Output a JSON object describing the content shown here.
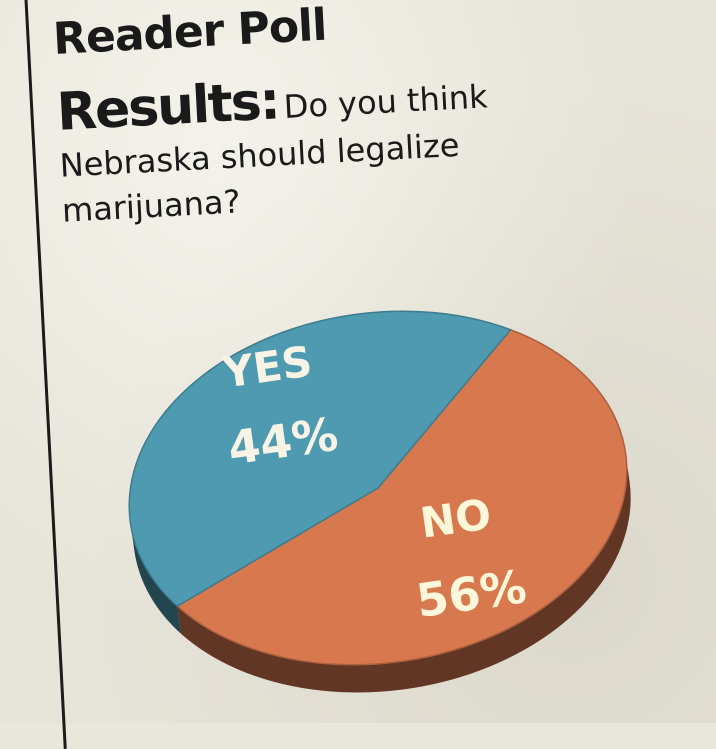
{
  "header": {
    "kicker": "Reader Poll",
    "results_word": "Results:",
    "question_part1": "Do you think",
    "question_part2": "Nebraska should legalize",
    "question_part3": "marijuana?"
  },
  "chart_data": {
    "type": "pie",
    "title": "",
    "slices": [
      {
        "label": "YES",
        "value": 44,
        "value_text": "44%",
        "color": "#4e9ab0"
      },
      {
        "label": "NO",
        "value": 56,
        "value_text": "56%",
        "color": "#d8784f"
      }
    ]
  },
  "colors": {
    "paper": "#e6e3d8",
    "ink": "#1a1a1a",
    "yes": "#4e9ab0",
    "no": "#d8784f",
    "no_side": "#5a3a28",
    "yes_side": "#3b6e7c"
  }
}
